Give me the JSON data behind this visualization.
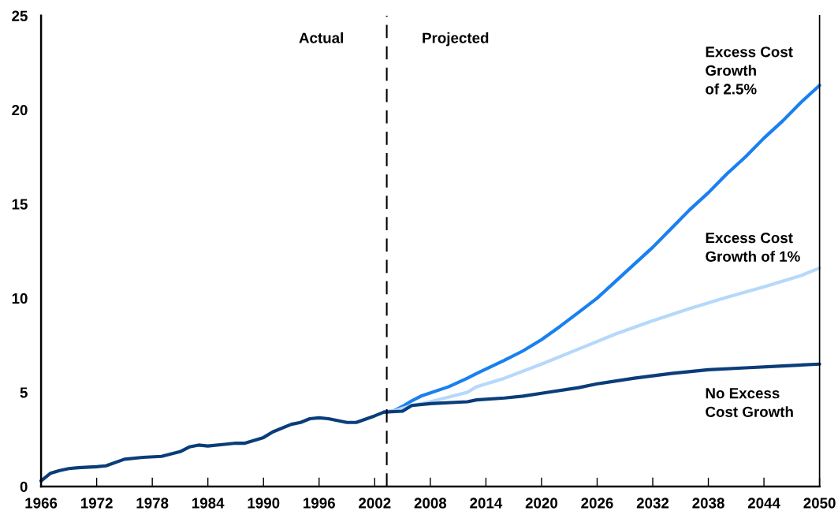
{
  "chart_data": {
    "type": "line",
    "series": [
      {
        "name": "Excess Cost\nGrowth\nof 2.5%",
        "color": "#1a80f0",
        "x": [
          2003,
          2004,
          2005,
          2006,
          2007,
          2010,
          2012,
          2013,
          2016,
          2018,
          2020,
          2022,
          2024,
          2026,
          2028,
          2030,
          2032,
          2034,
          2036,
          2038,
          2040,
          2042,
          2044,
          2046,
          2048,
          2050
        ],
        "values": [
          3.95,
          4.0,
          4.25,
          4.55,
          4.8,
          5.3,
          5.75,
          6.0,
          6.7,
          7.2,
          7.8,
          8.5,
          9.25,
          10.0,
          10.9,
          11.8,
          12.7,
          13.7,
          14.7,
          15.6,
          16.6,
          17.5,
          18.5,
          19.4,
          20.4,
          21.3
        ]
      },
      {
        "name": "Excess Cost\nGrowth of 1%",
        "color": "#b5d8fb",
        "x": [
          2003,
          2004,
          2006,
          2008,
          2012,
          2013,
          2016,
          2020,
          2024,
          2028,
          2032,
          2036,
          2040,
          2044,
          2048,
          2050
        ],
        "values": [
          3.95,
          4.0,
          4.3,
          4.5,
          5.0,
          5.3,
          5.75,
          6.5,
          7.3,
          8.1,
          8.8,
          9.45,
          10.05,
          10.6,
          11.2,
          11.6
        ]
      },
      {
        "name": "No Excess\nCost Growth",
        "color": "#0a3d7a",
        "x": [
          1966,
          1967,
          1968,
          1969,
          1970,
          1972,
          1973,
          1975,
          1977,
          1979,
          1981,
          1982,
          1983,
          1984,
          1986,
          1987,
          1988,
          1990,
          1991,
          1993,
          1994,
          1995,
          1996,
          1997,
          1999,
          2000,
          2002,
          2003,
          2005,
          2006,
          2008,
          2012,
          2013,
          2016,
          2018,
          2020,
          2024,
          2026,
          2030,
          2034,
          2038,
          2042,
          2046,
          2050
        ],
        "values": [
          0.3,
          0.7,
          0.85,
          0.95,
          1.0,
          1.05,
          1.1,
          1.45,
          1.55,
          1.6,
          1.85,
          2.1,
          2.2,
          2.15,
          2.25,
          2.3,
          2.3,
          2.6,
          2.9,
          3.3,
          3.4,
          3.6,
          3.65,
          3.6,
          3.4,
          3.4,
          3.75,
          3.95,
          4.0,
          4.3,
          4.4,
          4.5,
          4.6,
          4.7,
          4.8,
          4.95,
          5.25,
          5.45,
          5.75,
          6.0,
          6.2,
          6.3,
          6.4,
          6.5
        ]
      }
    ],
    "xlim": [
      1966,
      2050
    ],
    "xticks": [
      1966,
      1972,
      1978,
      1984,
      1990,
      1996,
      2002,
      2008,
      2014,
      2020,
      2026,
      2032,
      2038,
      2044,
      2050
    ],
    "ylim": [
      0,
      25
    ],
    "yticks": [
      0,
      5,
      10,
      15,
      20,
      25
    ],
    "ref_lines": [
      {
        "axis": "x",
        "value": 2003.3,
        "color": "#000000",
        "line_style": "dashed"
      }
    ],
    "annotations": [
      "Actual",
      "Projected"
    ],
    "grid": false,
    "legend": false,
    "marker": "none",
    "line_style": "solid"
  }
}
